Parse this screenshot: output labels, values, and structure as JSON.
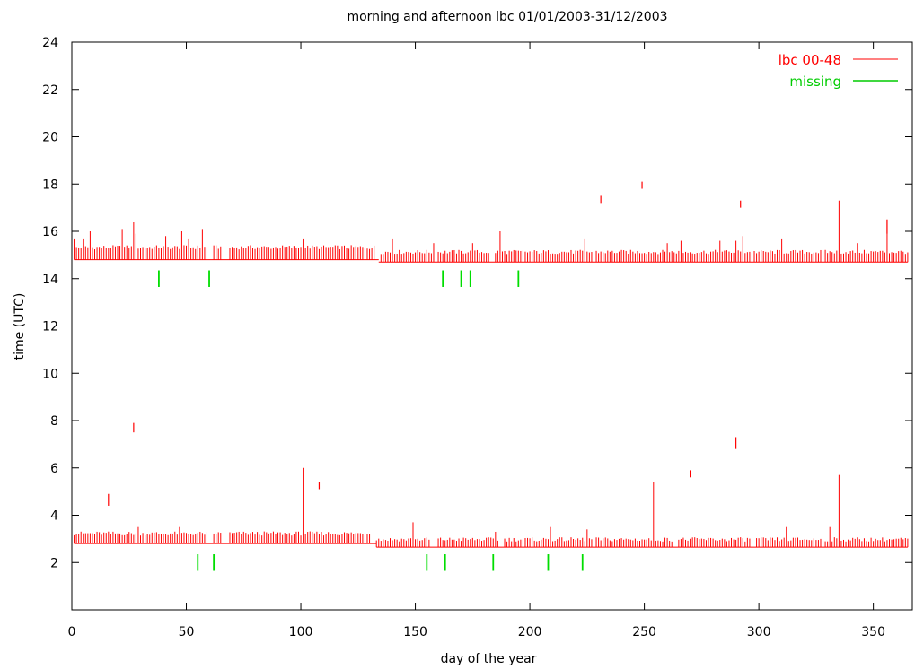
{
  "chart_data": {
    "type": "bar",
    "title": "morning and afternoon lbc  01/01/2003-31/12/2003",
    "xlabel": "day of the year",
    "ylabel": "time (UTC)",
    "xlim": [
      0,
      367
    ],
    "ylim": [
      0,
      24
    ],
    "x_ticks": [
      0,
      50,
      100,
      150,
      200,
      250,
      300,
      350
    ],
    "y_ticks": [
      2,
      4,
      6,
      8,
      10,
      12,
      14,
      16,
      18,
      20,
      22,
      24
    ],
    "grid": false,
    "legend_position": "top-right",
    "series": [
      {
        "name": "lbc 00-48",
        "color": "#ff0000",
        "description": "vertical bars spanning the availability window of each run per day",
        "afternoon": {
          "bottom_early": 14.8,
          "typical_top_early": 15.3,
          "spikes": [
            [
              1,
              15.7
            ],
            [
              5,
              15.7
            ],
            [
              8,
              16.0
            ],
            [
              22,
              16.1
            ],
            [
              27,
              16.4
            ],
            [
              28,
              15.9
            ],
            [
              41,
              15.8
            ],
            [
              48,
              16.0
            ],
            [
              51,
              15.7
            ],
            [
              57,
              16.1
            ],
            [
              101,
              15.7
            ],
            [
              140,
              15.7
            ],
            [
              158,
              15.5
            ],
            [
              175,
              15.5
            ],
            [
              187,
              16.0
            ],
            [
              224,
              15.7
            ],
            [
              260,
              15.5
            ],
            [
              266,
              15.6
            ],
            [
              283,
              15.6
            ],
            [
              290,
              15.6
            ],
            [
              293,
              15.8
            ],
            [
              310,
              15.7
            ],
            [
              335,
              17.3
            ],
            [
              343,
              15.5
            ],
            [
              356,
              16.5
            ]
          ],
          "outliers": [
            [
              231,
              17.2,
              17.5
            ],
            [
              249,
              17.8,
              18.1
            ],
            [
              292,
              17.0,
              17.3
            ],
            [
              356,
              15.9,
              16.5
            ]
          ],
          "gaps": [
            [
              60,
              61
            ],
            [
              66,
              68
            ],
            [
              133,
              134
            ],
            [
              183,
              184
            ]
          ]
        },
        "morning": {
          "bottom_early": 2.8,
          "typical_top_early": 3.2,
          "spikes": [
            [
              29,
              3.5
            ],
            [
              47,
              3.5
            ],
            [
              101,
              6.0
            ],
            [
              149,
              3.7
            ],
            [
              185,
              3.3
            ],
            [
              209,
              3.5
            ],
            [
              225,
              3.4
            ],
            [
              254,
              5.4
            ],
            [
              312,
              3.5
            ],
            [
              331,
              3.5
            ],
            [
              335,
              5.7
            ]
          ],
          "outliers": [
            [
              16,
              4.4,
              4.9
            ],
            [
              27,
              7.5,
              7.9
            ],
            [
              108,
              5.1,
              5.4
            ],
            [
              270,
              5.6,
              5.9
            ],
            [
              290,
              6.8,
              7.3
            ]
          ],
          "gaps": [
            [
              60,
              61
            ],
            [
              66,
              68
            ],
            [
              131,
              132
            ],
            [
              157,
              158
            ],
            [
              187,
              188
            ],
            [
              263,
              264
            ],
            [
              297,
              298
            ]
          ]
        }
      },
      {
        "name": "missing",
        "color": "#00dd00",
        "description": "green markers for missing runs",
        "points": [
          [
            38,
            14
          ],
          [
            60,
            14
          ],
          [
            162,
            14
          ],
          [
            170,
            14
          ],
          [
            174,
            14
          ],
          [
            195,
            14
          ],
          [
            55,
            2
          ],
          [
            62,
            2
          ],
          [
            155,
            2
          ],
          [
            163,
            2
          ],
          [
            184,
            2
          ],
          [
            208,
            2
          ],
          [
            223,
            2
          ]
        ]
      }
    ]
  }
}
